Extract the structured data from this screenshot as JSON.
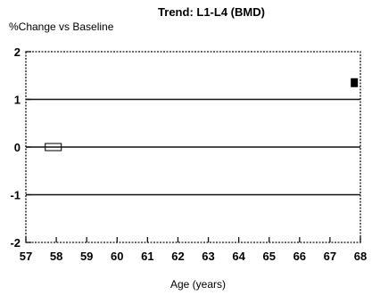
{
  "chart_data": {
    "type": "line",
    "title": "Trend: L1-L4 (BMD)",
    "ylabel": "%Change vs Baseline",
    "xlabel": "Age (years)",
    "xlim": [
      57,
      68
    ],
    "ylim": [
      -2,
      2
    ],
    "x_ticks": [
      57,
      58,
      59,
      60,
      61,
      62,
      63,
      64,
      65,
      66,
      67,
      68
    ],
    "x_tick_labels": [
      "57",
      "58",
      "59",
      "60",
      "61",
      "62",
      "63",
      "64",
      "65",
      "66",
      "67",
      "68"
    ],
    "y_ticks": [
      -2,
      -1,
      0,
      1,
      2
    ],
    "y_tick_labels": [
      "-2",
      "-1",
      "0",
      "1",
      "2"
    ],
    "reference_lines": [
      1,
      0,
      -1
    ],
    "series": [
      {
        "values": [
          {
            "x": 57.9,
            "y": 0.0
          },
          {
            "x": 67.8,
            "y": 1.35
          }
        ]
      }
    ],
    "colors": {
      "axis": "#111111",
      "lines": "#111111",
      "marker": "#000000"
    },
    "grid": false,
    "legend": "none"
  }
}
